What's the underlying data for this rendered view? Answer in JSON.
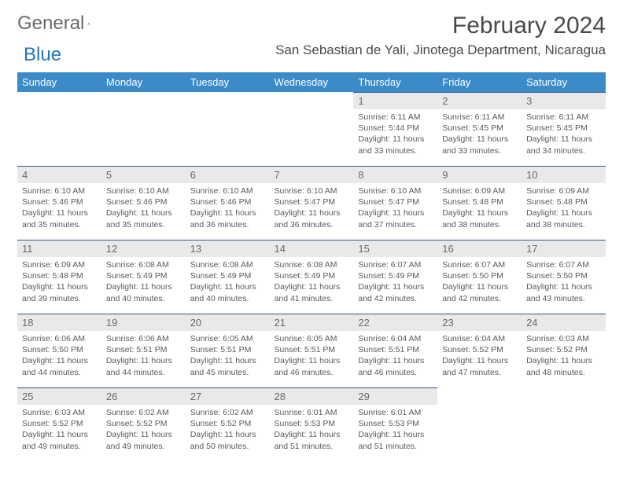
{
  "logo": {
    "text_general": "General",
    "text_blue": "Blue"
  },
  "header": {
    "month_title": "February 2024",
    "location": "San Sebastian de Yali, Jinotega Department, Nicaragua"
  },
  "colors": {
    "header_bg": "#3b8bc9",
    "header_text": "#ffffff",
    "day_num_bg": "#e9e9e9",
    "day_border": "#2b5a8a",
    "body_text": "#5a5a5a",
    "title_text": "#4a4a4a",
    "logo_gray": "#6a6a6a",
    "logo_blue": "#2176bd"
  },
  "weekdays": [
    "Sunday",
    "Monday",
    "Tuesday",
    "Wednesday",
    "Thursday",
    "Friday",
    "Saturday"
  ],
  "weeks": [
    [
      null,
      null,
      null,
      null,
      {
        "day": "1",
        "sunrise": "6:11 AM",
        "sunset": "5:44 PM",
        "daylight": "11 hours and 33 minutes."
      },
      {
        "day": "2",
        "sunrise": "6:11 AM",
        "sunset": "5:45 PM",
        "daylight": "11 hours and 33 minutes."
      },
      {
        "day": "3",
        "sunrise": "6:11 AM",
        "sunset": "5:45 PM",
        "daylight": "11 hours and 34 minutes."
      }
    ],
    [
      {
        "day": "4",
        "sunrise": "6:10 AM",
        "sunset": "5:46 PM",
        "daylight": "11 hours and 35 minutes."
      },
      {
        "day": "5",
        "sunrise": "6:10 AM",
        "sunset": "5:46 PM",
        "daylight": "11 hours and 35 minutes."
      },
      {
        "day": "6",
        "sunrise": "6:10 AM",
        "sunset": "5:46 PM",
        "daylight": "11 hours and 36 minutes."
      },
      {
        "day": "7",
        "sunrise": "6:10 AM",
        "sunset": "5:47 PM",
        "daylight": "11 hours and 36 minutes."
      },
      {
        "day": "8",
        "sunrise": "6:10 AM",
        "sunset": "5:47 PM",
        "daylight": "11 hours and 37 minutes."
      },
      {
        "day": "9",
        "sunrise": "6:09 AM",
        "sunset": "5:48 PM",
        "daylight": "11 hours and 38 minutes."
      },
      {
        "day": "10",
        "sunrise": "6:09 AM",
        "sunset": "5:48 PM",
        "daylight": "11 hours and 38 minutes."
      }
    ],
    [
      {
        "day": "11",
        "sunrise": "6:09 AM",
        "sunset": "5:48 PM",
        "daylight": "11 hours and 39 minutes."
      },
      {
        "day": "12",
        "sunrise": "6:08 AM",
        "sunset": "5:49 PM",
        "daylight": "11 hours and 40 minutes."
      },
      {
        "day": "13",
        "sunrise": "6:08 AM",
        "sunset": "5:49 PM",
        "daylight": "11 hours and 40 minutes."
      },
      {
        "day": "14",
        "sunrise": "6:08 AM",
        "sunset": "5:49 PM",
        "daylight": "11 hours and 41 minutes."
      },
      {
        "day": "15",
        "sunrise": "6:07 AM",
        "sunset": "5:49 PM",
        "daylight": "11 hours and 42 minutes."
      },
      {
        "day": "16",
        "sunrise": "6:07 AM",
        "sunset": "5:50 PM",
        "daylight": "11 hours and 42 minutes."
      },
      {
        "day": "17",
        "sunrise": "6:07 AM",
        "sunset": "5:50 PM",
        "daylight": "11 hours and 43 minutes."
      }
    ],
    [
      {
        "day": "18",
        "sunrise": "6:06 AM",
        "sunset": "5:50 PM",
        "daylight": "11 hours and 44 minutes."
      },
      {
        "day": "19",
        "sunrise": "6:06 AM",
        "sunset": "5:51 PM",
        "daylight": "11 hours and 44 minutes."
      },
      {
        "day": "20",
        "sunrise": "6:05 AM",
        "sunset": "5:51 PM",
        "daylight": "11 hours and 45 minutes."
      },
      {
        "day": "21",
        "sunrise": "6:05 AM",
        "sunset": "5:51 PM",
        "daylight": "11 hours and 46 minutes."
      },
      {
        "day": "22",
        "sunrise": "6:04 AM",
        "sunset": "5:51 PM",
        "daylight": "11 hours and 46 minutes."
      },
      {
        "day": "23",
        "sunrise": "6:04 AM",
        "sunset": "5:52 PM",
        "daylight": "11 hours and 47 minutes."
      },
      {
        "day": "24",
        "sunrise": "6:03 AM",
        "sunset": "5:52 PM",
        "daylight": "11 hours and 48 minutes."
      }
    ],
    [
      {
        "day": "25",
        "sunrise": "6:03 AM",
        "sunset": "5:52 PM",
        "daylight": "11 hours and 49 minutes."
      },
      {
        "day": "26",
        "sunrise": "6:02 AM",
        "sunset": "5:52 PM",
        "daylight": "11 hours and 49 minutes."
      },
      {
        "day": "27",
        "sunrise": "6:02 AM",
        "sunset": "5:52 PM",
        "daylight": "11 hours and 50 minutes."
      },
      {
        "day": "28",
        "sunrise": "6:01 AM",
        "sunset": "5:53 PM",
        "daylight": "11 hours and 51 minutes."
      },
      {
        "day": "29",
        "sunrise": "6:01 AM",
        "sunset": "5:53 PM",
        "daylight": "11 hours and 51 minutes."
      },
      null,
      null
    ]
  ],
  "labels": {
    "sunrise_prefix": "Sunrise: ",
    "sunset_prefix": "Sunset: ",
    "daylight_prefix": "Daylight: "
  }
}
